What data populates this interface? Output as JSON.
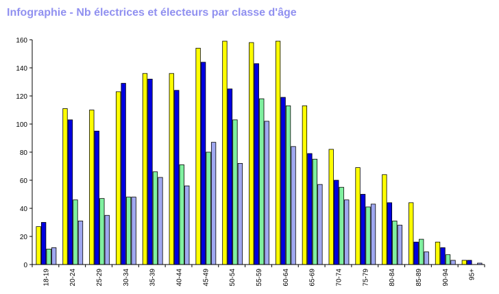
{
  "chart_data": {
    "type": "bar",
    "title": "Infographie - Nb électrices et électeurs par classe d'âge",
    "categories": [
      "18-19",
      "20-24",
      "25-29",
      "30-34",
      "35-39",
      "40-44",
      "45-49",
      "50-54",
      "55-59",
      "60-64",
      "65-69",
      "70-74",
      "75-79",
      "80-84",
      "85-89",
      "90-94",
      "95+"
    ],
    "series": [
      {
        "color": "#ffff00",
        "values": [
          27,
          111,
          110,
          123,
          136,
          136,
          154,
          159,
          158,
          159,
          113,
          82,
          69,
          64,
          44,
          16,
          3
        ]
      },
      {
        "color": "#0000e0",
        "values": [
          30,
          103,
          95,
          129,
          132,
          124,
          144,
          125,
          143,
          119,
          79,
          60,
          50,
          44,
          16,
          12,
          3
        ]
      },
      {
        "color": "#80f0a0",
        "values": [
          11,
          46,
          47,
          48,
          66,
          71,
          80,
          103,
          118,
          113,
          75,
          55,
          41,
          31,
          18,
          7,
          0
        ]
      },
      {
        "color": "#a0a8f0",
        "values": [
          12,
          31,
          35,
          48,
          62,
          56,
          87,
          72,
          102,
          84,
          57,
          46,
          43,
          28,
          9,
          3,
          1
        ]
      }
    ],
    "ylim": [
      0,
      160
    ],
    "yticks": [
      0,
      20,
      40,
      60,
      80,
      100,
      120,
      140,
      160
    ],
    "title_color": "#9090f0",
    "grid": false
  }
}
